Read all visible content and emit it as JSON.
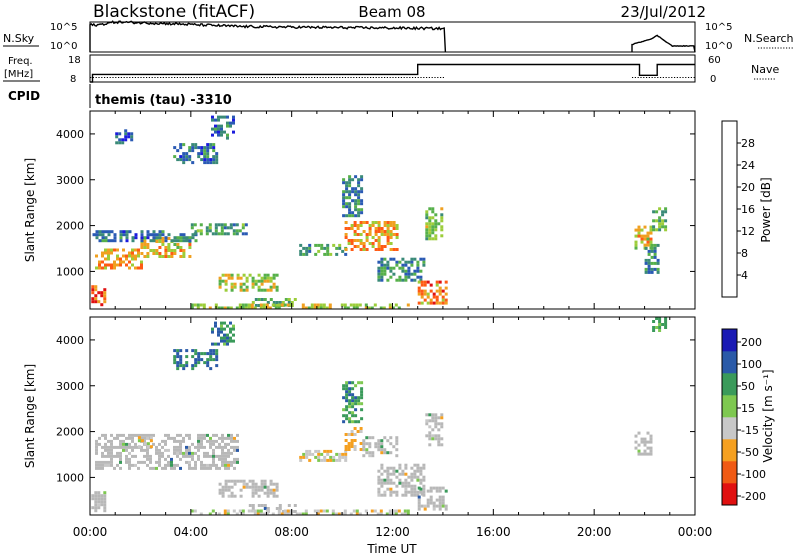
{
  "header": {
    "radar": "Blackstone (fitACF)",
    "beam": "Beam 08",
    "date": "23/Jul/2012"
  },
  "small_panels": {
    "nsky_label": "N.Sky",
    "nsky_top": "10^5",
    "nsky_bottom": "10^0",
    "nsearch_label": "N.Search",
    "nsearch_top": "10^5",
    "nsearch_bottom": "10^0",
    "freq_label": "Freq.",
    "freq_unit": "[MHz]",
    "freq_top": "18",
    "freq_bottom": "8",
    "nave_label": "Nave",
    "nave_top": "60",
    "nave_bottom": "0",
    "cpid_label": "CPID",
    "cpid_text": "themis (tau) -3310"
  },
  "power_panel": {
    "ylabel": "Slant Range [km]",
    "cbar_label": "Power [dB]",
    "cbar_ticks": [
      "28",
      "24",
      "20",
      "16",
      "12",
      "8",
      "4"
    ]
  },
  "velocity_panel": {
    "ylabel": "Slant Range [km]",
    "cbar_label": "Velocity [m s⁻¹]",
    "cbar_ticks": [
      "200",
      "100",
      "50",
      "15",
      "-15",
      "-50",
      "-100",
      "-200"
    ]
  },
  "x_axis": {
    "label": "Time UT",
    "ticks": [
      "00:00",
      "04:00",
      "08:00",
      "12:00",
      "16:00",
      "20:00",
      "00:00"
    ]
  },
  "colors": {
    "power_scale": [
      "#1c1cdc",
      "#2a5ab4",
      "#3a8a78",
      "#56b04a",
      "#9ccd3a",
      "#f0a020",
      "#ff5a14",
      "#e01010"
    ],
    "velocity_scale": [
      "#e01010",
      "#f05a14",
      "#f5a020",
      "#c8c8c8",
      "#7ec850",
      "#3a9a5a",
      "#2a5aa8",
      "#1a1ab4"
    ],
    "ground_scatter": "#b8b8b8",
    "trace": "#000000"
  },
  "chart_data": {
    "type": "heatmap",
    "x_unit": "hours UT",
    "xlim": [
      0,
      24
    ],
    "ylim": [
      180,
      4500
    ],
    "y_ticks": [
      1000,
      2000,
      3000,
      4000
    ],
    "data_coverage_hours": [
      [
        0,
        14.1
      ],
      [
        21.5,
        24
      ]
    ],
    "power_regions": [
      {
        "t": [
          0.05,
          0.55
        ],
        "r": [
          250,
          700
        ],
        "value": 26
      },
      {
        "t": [
          0.2,
          2.0
        ],
        "r": [
          1100,
          1500
        ],
        "value": 22
      },
      {
        "t": [
          2.0,
          4.0
        ],
        "r": [
          1350,
          1750
        ],
        "value": 20
      },
      {
        "t": [
          0.1,
          4.2
        ],
        "r": [
          1650,
          1900
        ],
        "value": 8
      },
      {
        "t": [
          4.0,
          6.2
        ],
        "r": [
          1800,
          2050
        ],
        "value": 12
      },
      {
        "t": [
          1.0,
          1.6
        ],
        "r": [
          3800,
          4100
        ],
        "value": 6
      },
      {
        "t": [
          3.3,
          5.0
        ],
        "r": [
          3400,
          3800
        ],
        "value": 8
      },
      {
        "t": [
          4.8,
          5.7
        ],
        "r": [
          3900,
          4400
        ],
        "value": 8
      },
      {
        "t": [
          5.1,
          7.4
        ],
        "r": [
          580,
          950
        ],
        "value": 18
      },
      {
        "t": [
          6.3,
          8.1
        ],
        "r": [
          230,
          420
        ],
        "value": 14
      },
      {
        "t": [
          4.0,
          12.8
        ],
        "r": [
          200,
          300
        ],
        "value": 18
      },
      {
        "t": [
          8.3,
          10.2
        ],
        "r": [
          1350,
          1600
        ],
        "value": 12
      },
      {
        "t": [
          10.1,
          12.2
        ],
        "r": [
          1500,
          2100
        ],
        "value": 22
      },
      {
        "t": [
          10.0,
          10.8
        ],
        "r": [
          2200,
          3100
        ],
        "value": 10
      },
      {
        "t": [
          11.4,
          13.3
        ],
        "r": [
          800,
          1300
        ],
        "value": 10
      },
      {
        "t": [
          13.0,
          14.1
        ],
        "r": [
          300,
          800
        ],
        "value": 24
      },
      {
        "t": [
          13.3,
          14.0
        ],
        "r": [
          1700,
          2400
        ],
        "value": 16
      },
      {
        "t": [
          21.6,
          22.3
        ],
        "r": [
          1500,
          2000
        ],
        "value": 20
      },
      {
        "t": [
          22.0,
          22.5
        ],
        "r": [
          1000,
          1600
        ],
        "value": 10
      },
      {
        "t": [
          22.3,
          22.8
        ],
        "r": [
          1900,
          2400
        ],
        "value": 14
      }
    ],
    "velocity_regions": [
      {
        "t": [
          0.05,
          0.55
        ],
        "r": [
          250,
          700
        ],
        "value": 0,
        "ground_scatter": true
      },
      {
        "t": [
          0.2,
          5.8
        ],
        "r": [
          1200,
          1950
        ],
        "value": 0,
        "ground_scatter": true
      },
      {
        "t": [
          1.9,
          2.4
        ],
        "r": [
          1700,
          1900
        ],
        "value": -40
      },
      {
        "t": [
          3.3,
          5.0
        ],
        "r": [
          3400,
          3800
        ],
        "value": 60
      },
      {
        "t": [
          4.8,
          5.7
        ],
        "r": [
          3900,
          4400
        ],
        "value": 40
      },
      {
        "t": [
          5.1,
          7.4
        ],
        "r": [
          580,
          950
        ],
        "value": 0,
        "ground_scatter": true
      },
      {
        "t": [
          6.3,
          8.1
        ],
        "r": [
          230,
          420
        ],
        "value": 0,
        "ground_scatter": true
      },
      {
        "t": [
          4.0,
          12.8
        ],
        "r": [
          200,
          300
        ],
        "value": -30
      },
      {
        "t": [
          8.3,
          10.2
        ],
        "r": [
          1350,
          1600
        ],
        "value": -40
      },
      {
        "t": [
          10.1,
          10.8
        ],
        "r": [
          1600,
          2100
        ],
        "value": -60
      },
      {
        "t": [
          10.8,
          12.2
        ],
        "r": [
          1500,
          1900
        ],
        "value": 0,
        "ground_scatter": true
      },
      {
        "t": [
          10.0,
          10.8
        ],
        "r": [
          2200,
          3100
        ],
        "value": 30
      },
      {
        "t": [
          11.4,
          13.3
        ],
        "r": [
          600,
          1300
        ],
        "value": 0,
        "ground_scatter": true
      },
      {
        "t": [
          13.0,
          14.1
        ],
        "r": [
          300,
          800
        ],
        "value": 0,
        "ground_scatter": true
      },
      {
        "t": [
          13.3,
          14.0
        ],
        "r": [
          1700,
          2400
        ],
        "value": 0,
        "ground_scatter": true
      },
      {
        "t": [
          21.6,
          22.3
        ],
        "r": [
          1500,
          2000
        ],
        "value": 0,
        "ground_scatter": true
      },
      {
        "t": [
          22.3,
          22.8
        ],
        "r": [
          4200,
          4500
        ],
        "value": 20
      }
    ],
    "nsky_trace": {
      "t": [
        0,
        0.3,
        1,
        3,
        6,
        9,
        12,
        14.1
      ],
      "level": [
        0.9,
        0.9,
        1.0,
        0.95,
        0.85,
        0.82,
        0.8,
        0.78
      ]
    },
    "nsearch_trace": {
      "t": [
        21.5,
        22.3,
        22.5,
        23.1,
        24
      ],
      "level": [
        0.25,
        0.45,
        0.55,
        0.2,
        0.2
      ]
    },
    "freq_trace": {
      "t": [
        0,
        0.1,
        13.0,
        14.1,
        21.5,
        21.8,
        22.5,
        24
      ],
      "mhz": [
        8,
        10.8,
        14.5,
        14.5,
        14.5,
        10.5,
        14.5,
        14.5
      ]
    },
    "nave_level": 10
  }
}
